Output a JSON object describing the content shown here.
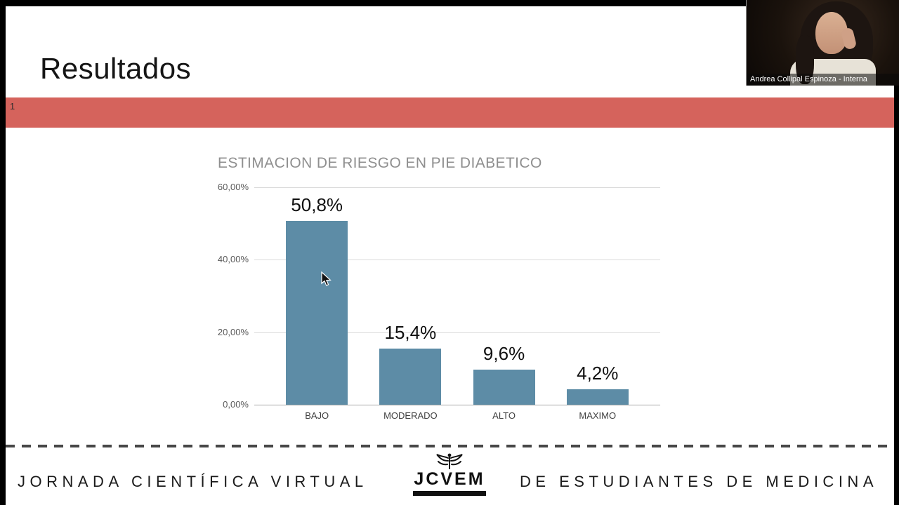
{
  "slide": {
    "title": "Resultados",
    "section_number": "1"
  },
  "chart_data": {
    "type": "bar",
    "title": "ESTIMACION DE RIESGO EN PIE DIABETICO",
    "categories": [
      "BAJO",
      "MODERADO",
      "ALTO",
      "MAXIMO"
    ],
    "values": [
      50.8,
      15.4,
      9.6,
      4.2
    ],
    "value_labels": [
      "50,8%",
      "15,4%",
      "9,6%",
      "4,2%"
    ],
    "y_ticks": [
      "60,00%",
      "40,00%",
      "20,00%",
      "0,00%"
    ],
    "xlabel": "",
    "ylabel": "",
    "ylim": [
      0,
      60
    ],
    "grid": true,
    "legend": "none",
    "bar_color": "#5d8ca6"
  },
  "footer": {
    "left_text": "JORNADA CIENTÍFICA VIRTUAL",
    "logo_text": "JCVEM",
    "right_text": "DE ESTUDIANTES DE MEDICINA"
  },
  "webcam": {
    "caption": "Andrea Collipal Espinoza - Interna"
  },
  "colors": {
    "banner": "#d5635c",
    "bar_fill": "#5d8ca6"
  }
}
